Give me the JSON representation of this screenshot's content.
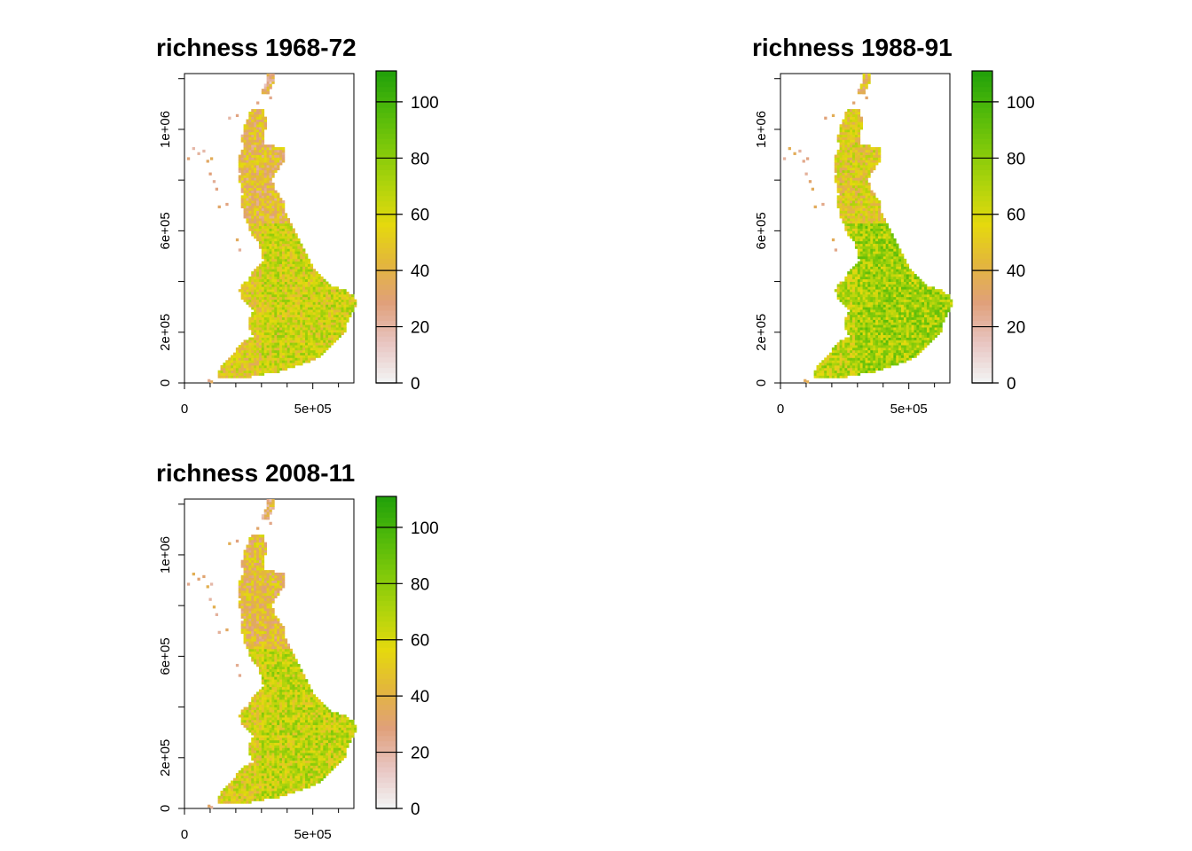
{
  "chart_data": [
    {
      "type": "heatmap",
      "title": "richness 1968-72",
      "x_ticks": [
        {
          "value": 0,
          "label": "0"
        },
        {
          "value": 500000,
          "label": "5e+05"
        }
      ],
      "y_ticks": [
        {
          "value": 0,
          "label": "0"
        },
        {
          "value": 200000,
          "label": "2e+05"
        },
        {
          "value": 600000,
          "label": "6e+05"
        },
        {
          "value": 1000000,
          "label": "1e+06"
        }
      ],
      "xlim": [
        0,
        660000
      ],
      "ylim": [
        0,
        1220000
      ],
      "legend_ticks": [
        "0",
        "20",
        "40",
        "60",
        "80",
        "100"
      ],
      "legend_range": [
        0,
        111
      ],
      "placement": "top-left",
      "mean_richness_england": 60,
      "mean_richness_scotland": 40,
      "seed": 11
    },
    {
      "type": "heatmap",
      "title": "richness 1988-91",
      "x_ticks": [
        {
          "value": 0,
          "label": "0"
        },
        {
          "value": 500000,
          "label": "5e+05"
        }
      ],
      "y_ticks": [
        {
          "value": 0,
          "label": "0"
        },
        {
          "value": 200000,
          "label": "2e+05"
        },
        {
          "value": 600000,
          "label": "6e+05"
        },
        {
          "value": 1000000,
          "label": "1e+06"
        }
      ],
      "xlim": [
        0,
        660000
      ],
      "ylim": [
        0,
        1220000
      ],
      "legend_ticks": [
        "0",
        "20",
        "40",
        "60",
        "80",
        "100"
      ],
      "legend_range": [
        0,
        111
      ],
      "placement": "top-right",
      "mean_richness_england": 74,
      "mean_richness_scotland": 52,
      "seed": 23
    },
    {
      "type": "heatmap",
      "title": "richness 2008-11",
      "x_ticks": [
        {
          "value": 0,
          "label": "0"
        },
        {
          "value": 500000,
          "label": "5e+05"
        }
      ],
      "y_ticks": [
        {
          "value": 0,
          "label": "0"
        },
        {
          "value": 200000,
          "label": "2e+05"
        },
        {
          "value": 600000,
          "label": "6e+05"
        },
        {
          "value": 1000000,
          "label": "1e+06"
        }
      ],
      "xlim": [
        0,
        660000
      ],
      "ylim": [
        0,
        1220000
      ],
      "legend_ticks": [
        "0",
        "20",
        "40",
        "60",
        "80",
        "100"
      ],
      "legend_range": [
        0,
        111
      ],
      "placement": "bottom-left",
      "mean_richness_england": 64,
      "mean_richness_scotland": 42,
      "seed": 37
    }
  ],
  "colors": {
    "ramp": [
      "#f2f2f2",
      "#e8c4c0",
      "#e0a07a",
      "#e3b63c",
      "#e5d90e",
      "#b0d40c",
      "#7dc80a",
      "#4bb70a",
      "#1e9e0a"
    ]
  }
}
